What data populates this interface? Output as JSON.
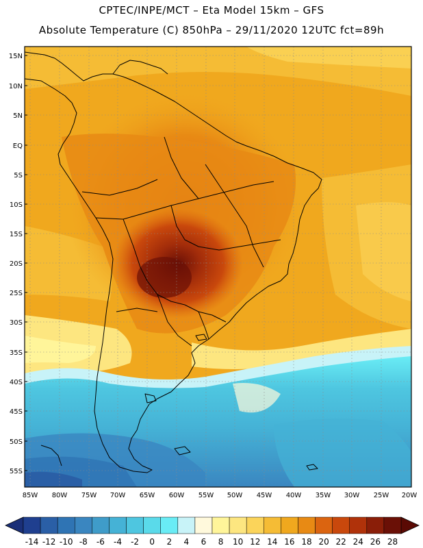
{
  "title_line1": "CPTEC/INPE/MCT –  Eta Model 15km – GFS",
  "title_line2": "Absolute Temperature (C) 850hPa – 29/11/2020 12UTC fct=89h",
  "lat_labels": [
    "15N",
    "10N",
    "5N",
    "EQ",
    "5S",
    "10S",
    "15S",
    "20S",
    "25S",
    "30S",
    "35S",
    "40S",
    "45S",
    "50S",
    "55S"
  ],
  "lon_labels": [
    "85W",
    "80W",
    "75W",
    "70W",
    "65W",
    "60W",
    "55W",
    "50W",
    "45W",
    "40W",
    "35W",
    "30W",
    "25W",
    "20W"
  ],
  "colorbar": {
    "labels": [
      "-14",
      "-12",
      "-10",
      "-8",
      "-6",
      "-4",
      "-2",
      "0",
      "2",
      "4",
      "6",
      "8",
      "10",
      "12",
      "14",
      "16",
      "18",
      "20",
      "22",
      "24",
      "26",
      "28"
    ],
    "colors": [
      "#1f3f8f",
      "#2a5fa6",
      "#2f74b4",
      "#3a86c0",
      "#3f9cc9",
      "#45b2d6",
      "#4ec6e0",
      "#5adaea",
      "#69ecf5",
      "#c8f3f8",
      "#fff9dc",
      "#fff59a",
      "#fde680",
      "#fbd45a",
      "#f5bc35",
      "#f0a81e",
      "#e88a14",
      "#db6410",
      "#c9480c",
      "#b0320a",
      "#8a1e08",
      "#6a1006"
    ]
  }
}
